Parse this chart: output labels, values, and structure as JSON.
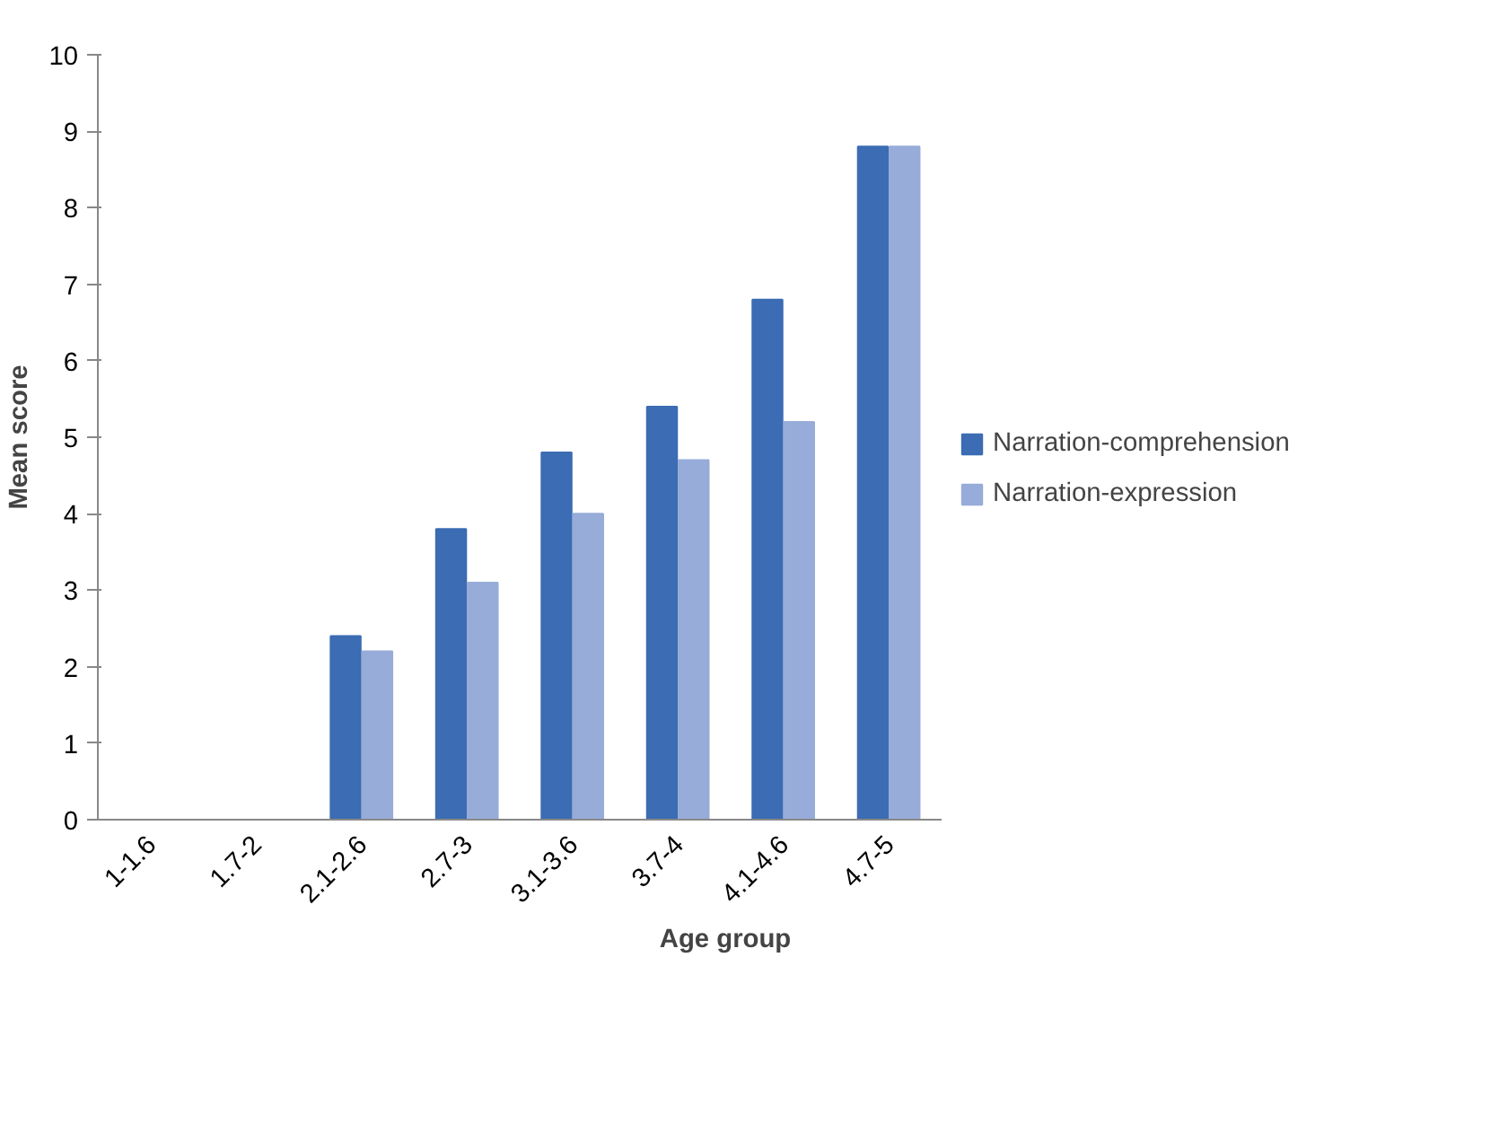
{
  "chart_data": {
    "type": "bar",
    "xlabel": "Age group",
    "ylabel": "Mean score",
    "categories": [
      "1-1.6",
      "1.7-2",
      "2.1-2.6",
      "2.7-3",
      "3.1-3.6",
      "3.7-4",
      "4.1-4.6",
      "4.7-5"
    ],
    "series": [
      {
        "name": "Narration-comprehension",
        "color": "#3b6cb4",
        "values": [
          0,
          0,
          2.4,
          3.8,
          4.8,
          5.4,
          6.8,
          8.8
        ]
      },
      {
        "name": "Narration-expression",
        "color": "#97acd8",
        "values": [
          0,
          0,
          2.2,
          3.1,
          4.0,
          4.7,
          5.2,
          8.8
        ]
      }
    ],
    "ylim": [
      0,
      10
    ],
    "yticks": [
      0,
      1,
      2,
      3,
      4,
      5,
      6,
      7,
      8,
      9,
      10
    ],
    "grid": false,
    "legend": "right"
  }
}
